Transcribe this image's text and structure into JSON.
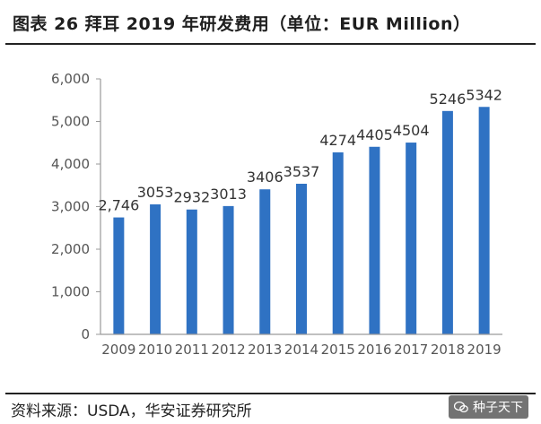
{
  "title": "图表 26 拜耳 2019 年研发费用（单位：EUR Million）",
  "source": "资料来源：USDA，华安证券研究所",
  "watermark": "种子天下",
  "colors": {
    "bar": "#2f72c3",
    "axis": "#9a9a9a",
    "text": "#333333"
  },
  "chart_data": {
    "type": "bar",
    "title": "图表 26 拜耳 2019 年研发费用（单位：EUR Million）",
    "xlabel": "",
    "ylabel": "",
    "categories": [
      "2009",
      "2010",
      "2011",
      "2012",
      "2013",
      "2014",
      "2015",
      "2016",
      "2017",
      "2018",
      "2019"
    ],
    "values": [
      2746,
      3053,
      2932,
      3013,
      3406,
      3537,
      4274,
      4405,
      4504,
      5246,
      5342
    ],
    "value_labels": [
      "2,746",
      "3053",
      "2932",
      "3013",
      "3406",
      "3537",
      "4274",
      "4405",
      "4504",
      "5246",
      "5342"
    ],
    "ylim": [
      0,
      6000
    ],
    "yticks": [
      0,
      1000,
      2000,
      3000,
      4000,
      5000,
      6000
    ],
    "ytick_labels": [
      "0",
      "1,000",
      "2,000",
      "3,000",
      "4,000",
      "5,000",
      "6,000"
    ],
    "grid": false,
    "legend": "none"
  }
}
